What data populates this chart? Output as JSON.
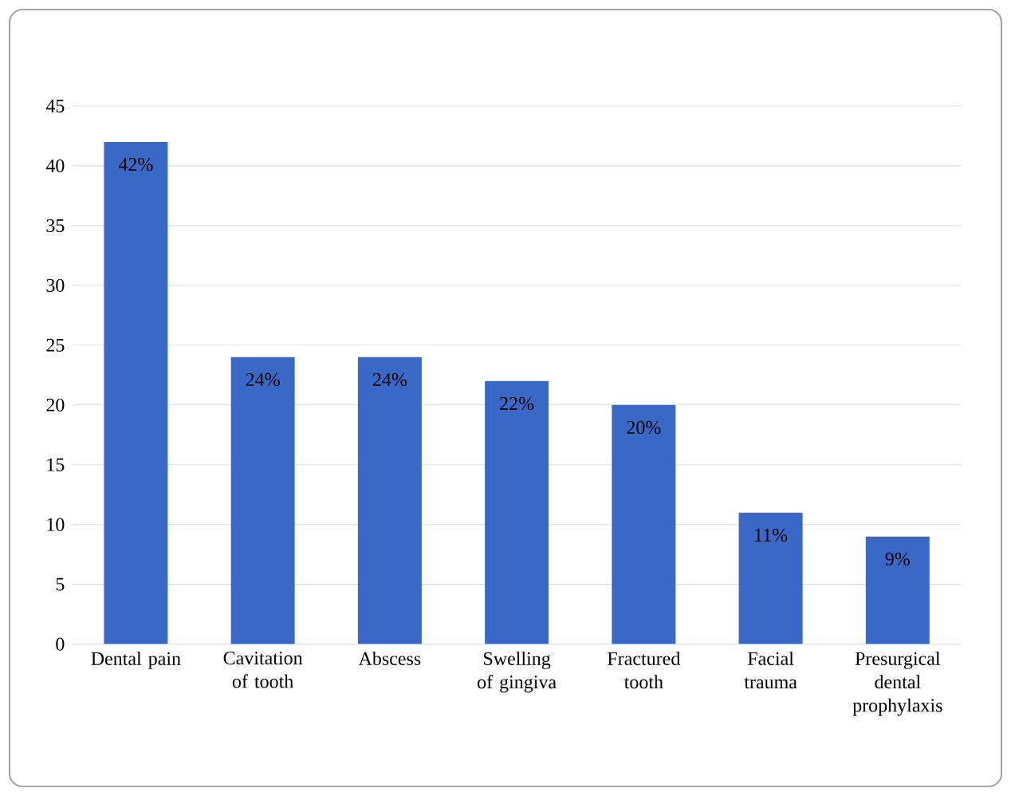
{
  "chart_data": {
    "type": "bar",
    "categories": [
      "Dental pain",
      "Cavitation of tooth",
      "Abscess",
      "Swelling of gingiva",
      "Fractured tooth",
      "Facial trauma",
      "Presurgical dental prophylaxis"
    ],
    "values": [
      42,
      24,
      24,
      22,
      20,
      11,
      9
    ],
    "value_labels": [
      "42%",
      "24%",
      "24%",
      "22%",
      "20%",
      "11%",
      "9%"
    ],
    "color": "#3a68c6",
    "ylim": [
      0,
      45
    ],
    "yticks": [
      0,
      5,
      10,
      15,
      20,
      25,
      30,
      35,
      40,
      45
    ],
    "grid": "y"
  }
}
